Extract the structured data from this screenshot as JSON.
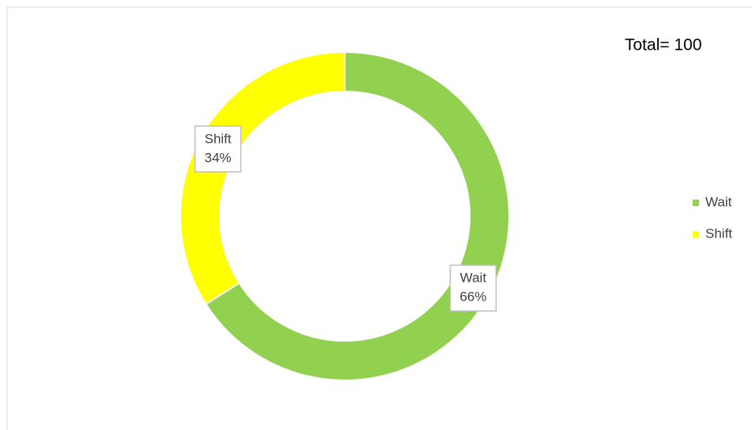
{
  "chart_data": {
    "type": "donut",
    "annotation": "Total= 100",
    "categories": [
      "Wait",
      "Shift"
    ],
    "values": [
      66,
      34
    ],
    "value_labels": [
      "66%",
      "34%"
    ],
    "colors": [
      "#92d050",
      "#ffff00"
    ],
    "legend": "right"
  }
}
